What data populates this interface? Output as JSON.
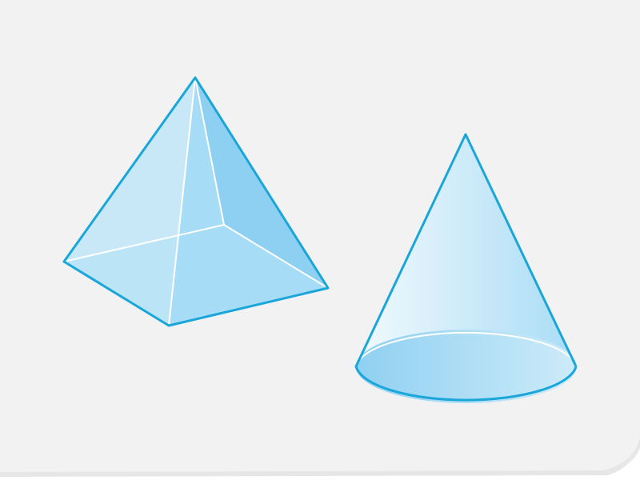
{
  "scene": {
    "colors": {
      "paper": "#f2f2f2",
      "paper_curl_shadow": "#d2d2d2",
      "outline": "#1aa6d9",
      "inner_edge": "#ffffff",
      "face_light": "#c8e8f8",
      "face_mid": "#a6dcf5",
      "face_dark": "#8ed0f2",
      "cone_highlight": "#eef8fd",
      "cone_shade": "#a9dcf5",
      "base_light": "#cdebf9",
      "base_dark": "#8fd0f1"
    },
    "shapes": [
      {
        "kind": "square-pyramid",
        "icon": "pyramid-icon"
      },
      {
        "kind": "cone",
        "icon": "cone-icon"
      }
    ]
  }
}
